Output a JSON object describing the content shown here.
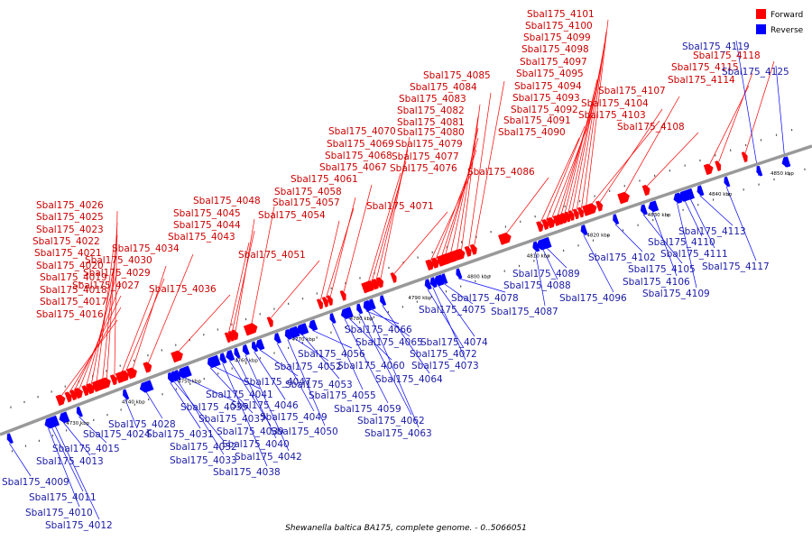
{
  "caption": "Shewanella baltica BA175, complete genome. - 0..5066051",
  "legend": [
    {
      "name": "Forward",
      "color": "#ff0000"
    },
    {
      "name": "Reverse",
      "color": "#0000ff"
    }
  ],
  "colors": {
    "forward": "#ff0000",
    "reverse": "#0000ff",
    "backbone": "#999999"
  },
  "scale_ticks": [
    "4730 kbp",
    "4740 kbp",
    "4750 kbp",
    "4760 kbp",
    "4770 kbp",
    "4780 kbp",
    "4790 kbp",
    "4800 kbp",
    "4810 kbp",
    "4820 kbp",
    "4830 kbp",
    "4840 kbp",
    "4850 kbp"
  ],
  "forward_genes": [
    "Sbal175_4016",
    "Sbal175_4017",
    "Sbal175_4018",
    "Sbal175_4019",
    "Sbal175_4020",
    "Sbal175_4021",
    "Sbal175_4022",
    "Sbal175_4023",
    "Sbal175_4025",
    "Sbal175_4026",
    "Sbal175_4027",
    "Sbal175_4029",
    "Sbal175_4030",
    "Sbal175_4034",
    "Sbal175_4036",
    "Sbal175_4043",
    "Sbal175_4044",
    "Sbal175_4045",
    "Sbal175_4048",
    "Sbal175_4051",
    "Sbal175_4054",
    "Sbal175_4057",
    "Sbal175_4058",
    "Sbal175_4061",
    "Sbal175_4067",
    "Sbal175_4068",
    "Sbal175_4069",
    "Sbal175_4070",
    "Sbal175_4071",
    "Sbal175_4076",
    "Sbal175_4077",
    "Sbal175_4079",
    "Sbal175_4080",
    "Sbal175_4081",
    "Sbal175_4082",
    "Sbal175_4083",
    "Sbal175_4084",
    "Sbal175_4085",
    "Sbal175_4086",
    "Sbal175_4090",
    "Sbal175_4091",
    "Sbal175_4092",
    "Sbal175_4093",
    "Sbal175_4094",
    "Sbal175_4095",
    "Sbal175_4097",
    "Sbal175_4098",
    "Sbal175_4099",
    "Sbal175_4100",
    "Sbal175_4101",
    "Sbal175_4103",
    "Sbal175_4104",
    "Sbal175_4107",
    "Sbal175_4108",
    "Sbal175_4114",
    "Sbal175_4115",
    "Sbal175_4118"
  ],
  "reverse_genes": [
    "Sbal175_4009",
    "Sbal175_4010",
    "Sbal175_4011",
    "Sbal175_4012",
    "Sbal175_4013",
    "Sbal175_4015",
    "Sbal175_4024",
    "Sbal175_4028",
    "Sbal175_4031",
    "Sbal175_4032",
    "Sbal175_4033",
    "Sbal175_4035",
    "Sbal175_4037",
    "Sbal175_4038",
    "Sbal175_4039",
    "Sbal175_4040",
    "Sbal175_4041",
    "Sbal175_4042",
    "Sbal175_4046",
    "Sbal175_4047",
    "Sbal175_4049",
    "Sbal175_4050",
    "Sbal175_4052",
    "Sbal175_4053",
    "Sbal175_4055",
    "Sbal175_4056",
    "Sbal175_4059",
    "Sbal175_4060",
    "Sbal175_4062",
    "Sbal175_4063",
    "Sbal175_4064",
    "Sbal175_4065",
    "Sbal175_4066",
    "Sbal175_4072",
    "Sbal175_4073",
    "Sbal175_4074",
    "Sbal175_4075",
    "Sbal175_4078",
    "Sbal175_4087",
    "Sbal175_4088",
    "Sbal175_4089",
    "Sbal175_4096",
    "Sbal175_4102",
    "Sbal175_4105",
    "Sbal175_4106",
    "Sbal175_4109",
    "Sbal175_4110",
    "Sbal175_4111",
    "Sbal175_4113",
    "Sbal175_4117",
    "Sbal175_4119",
    "Sbal175_4125"
  ]
}
